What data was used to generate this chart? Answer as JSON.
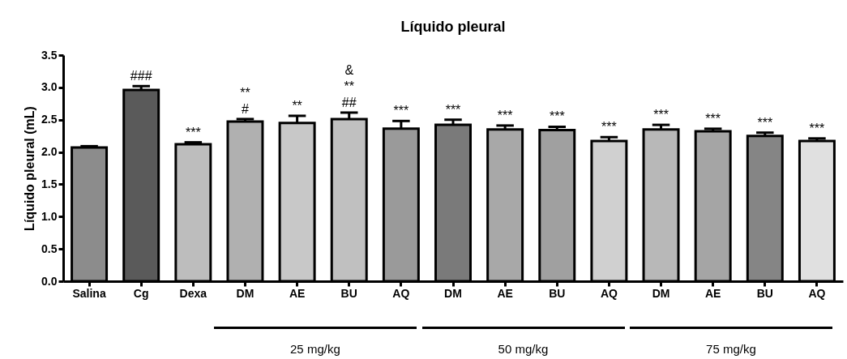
{
  "chart_data": {
    "type": "bar",
    "title": "Líquido pleural",
    "ylabel": "Líquido pleural (mL)",
    "categories": [
      "Salina",
      "Cg",
      "Dexa",
      "DM",
      "AE",
      "BU",
      "AQ",
      "DM",
      "AE",
      "BU",
      "AQ",
      "DM",
      "AE",
      "BU",
      "AQ"
    ],
    "values": [
      2.07,
      2.96,
      2.12,
      2.47,
      2.45,
      2.51,
      2.36,
      2.42,
      2.35,
      2.34,
      2.17,
      2.35,
      2.32,
      2.25,
      2.17
    ],
    "errors": [
      [
        2.07,
        2.09
      ],
      [
        2.96,
        3.02
      ],
      [
        2.12,
        2.15
      ],
      [
        2.47,
        2.51
      ],
      [
        2.45,
        2.56
      ],
      [
        2.51,
        2.61
      ],
      [
        2.36,
        2.48
      ],
      [
        2.42,
        2.5
      ],
      [
        2.35,
        2.41
      ],
      [
        2.34,
        2.39
      ],
      [
        2.17,
        2.23
      ],
      [
        2.35,
        2.42
      ],
      [
        2.32,
        2.36
      ],
      [
        2.25,
        2.3
      ],
      [
        2.17,
        2.21
      ]
    ],
    "colors": [
      "#8c8c8c",
      "#5a5a5a",
      "#bdbdbd",
      "#b0b0b0",
      "#c8c8c8",
      "#c0c0c0",
      "#9a9a9a",
      "#7a7a7a",
      "#a8a8a8",
      "#a0a0a0",
      "#d0d0d0",
      "#b8b8b8",
      "#a5a5a5",
      "#858585",
      "#e0e0e0"
    ],
    "value_labels": [
      null,
      "###",
      "***",
      "**\n#",
      "**",
      "&\n**\n##",
      "***",
      "***",
      "***",
      "***",
      "***",
      "***",
      "***",
      "***",
      "***"
    ],
    "ylim": [
      0,
      3.5
    ],
    "yticks": [
      {
        "value": 0,
        "label": "0.0"
      },
      0.5,
      {
        "value": 1,
        "label": "1.0"
      },
      1.5,
      {
        "value": 2,
        "label": "2.0"
      },
      2.5,
      {
        "value": 3,
        "label": "3.0"
      },
      3.5
    ],
    "grid": false,
    "annotations": [
      "25 mg/kg",
      "50 mg/kg",
      "75 mg/kg"
    ]
  }
}
